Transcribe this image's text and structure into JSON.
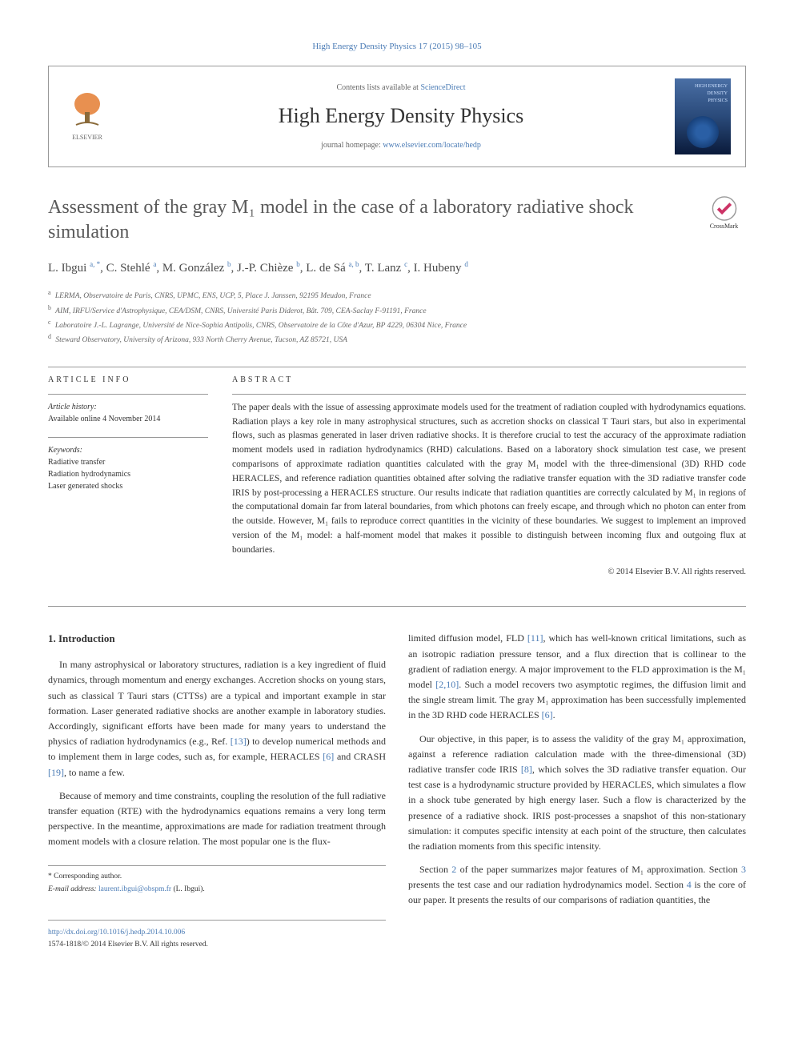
{
  "journal_ref": {
    "prefix": "High Energy Density Physics 17 (2015) 98–105",
    "link_text": "High Energy Density Physics 17 (2015) 98–105"
  },
  "header": {
    "contents_prefix": "Contents lists available at ",
    "contents_link": "ScienceDirect",
    "journal_name": "High Energy Density Physics",
    "homepage_prefix": "journal homepage: ",
    "homepage_link": "www.elsevier.com/locate/hedp",
    "publisher_name": "ELSEVIER",
    "cover_badge": "HIGH ENERGY DENSITY PHYSICS"
  },
  "crossmark_label": "CrossMark",
  "title": "Assessment of the gray M₁ model in the case of a laboratory radiative shock simulation",
  "authors_html": "L. Ibgui <sup class='sup-link'>a, *</sup>, C. Stehlé <sup class='sup-link'>a</sup>, M. González <sup class='sup-link'>b</sup>, J.-P. Chièze <sup class='sup-link'>b</sup>, L. de Sá <sup class='sup-link'>a, b</sup>, T. Lanz <sup class='sup-link'>c</sup>, I. Hubeny <sup class='sup-link'>d</sup>",
  "affiliations": [
    {
      "sup": "a",
      "text": "LERMA, Observatoire de Paris, CNRS, UPMC, ENS, UCP, 5, Place J. Janssen, 92195 Meudon, France"
    },
    {
      "sup": "b",
      "text": "AIM, IRFU/Service d'Astrophysique, CEA/DSM, CNRS, Université Paris Diderot, Bât. 709, CEA-Saclay F-91191, France"
    },
    {
      "sup": "c",
      "text": "Laboratoire J.-L. Lagrange, Université de Nice-Sophia Antipolis, CNRS, Observatoire de la Côte d'Azur, BP 4229, 06304 Nice, France"
    },
    {
      "sup": "d",
      "text": "Steward Observatory, University of Arizona, 933 North Cherry Avenue, Tucson, AZ 85721, USA"
    }
  ],
  "article_info": {
    "label": "ARTICLE INFO",
    "history_label": "Article history:",
    "history_text": "Available online 4 November 2014",
    "keywords_label": "Keywords:",
    "keywords": [
      "Radiative transfer",
      "Radiation hydrodynamics",
      "Laser generated shocks"
    ]
  },
  "abstract": {
    "label": "ABSTRACT",
    "text": "The paper deals with the issue of assessing approximate models used for the treatment of radiation coupled with hydrodynamics equations. Radiation plays a key role in many astrophysical structures, such as accretion shocks on classical T Tauri stars, but also in experimental flows, such as plasmas generated in laser driven radiative shocks. It is therefore crucial to test the accuracy of the approximate radiation moment models used in radiation hydrodynamics (RHD) calculations. Based on a laboratory shock simulation test case, we present comparisons of approximate radiation quantities calculated with the gray M₁ model with the three-dimensional (3D) RHD code HERACLES, and reference radiation quantities obtained after solving the radiative transfer equation with the 3D radiative transfer code IRIS by post-processing a HERACLES structure. Our results indicate that radiation quantities are correctly calculated by M₁ in regions of the computational domain far from lateral boundaries, from which photons can freely escape, and through which no photon can enter from the outside. However, M₁ fails to reproduce correct quantities in the vicinity of these boundaries. We suggest to implement an improved version of the M₁ model: a half-moment model that makes it possible to distinguish between incoming flux and outgoing flux at boundaries.",
    "copyright": "© 2014 Elsevier B.V. All rights reserved."
  },
  "body": {
    "section1_heading": "1. Introduction",
    "left_paras": [
      "In many astrophysical or laboratory structures, radiation is a key ingredient of fluid dynamics, through momentum and energy exchanges. Accretion shocks on young stars, such as classical T Tauri stars (CTTSs) are a typical and important example in star formation. Laser generated radiative shocks are another example in laboratory studies. Accordingly, significant efforts have been made for many years to understand the physics of radiation hydrodynamics (e.g., Ref. <span class='ref-link'>[13]</span>) to develop numerical methods and to implement them in large codes, such as, for example, HERACLES <span class='ref-link'>[6]</span> and CRASH <span class='ref-link'>[19]</span>, to name a few.",
      "Because of memory and time constraints, coupling the resolution of the full radiative transfer equation (RTE) with the hydrodynamics equations remains a very long term perspective. In the meantime, approximations are made for radiation treatment through moment models with a closure relation. The most popular one is the flux-"
    ],
    "right_paras": [
      "limited diffusion model, FLD <span class='ref-link'>[11]</span>, which has well-known critical limitations, such as an isotropic radiation pressure tensor, and a flux direction that is collinear to the gradient of radiation energy. A major improvement to the FLD approximation is the M₁ model <span class='ref-link'>[2,10]</span>. Such a model recovers two asymptotic regimes, the diffusion limit and the single stream limit. The gray M₁ approximation has been successfully implemented in the 3D RHD code HERACLES <span class='ref-link'>[6]</span>.",
      "Our objective, in this paper, is to assess the validity of the gray M₁ approximation, against a reference radiation calculation made with the three-dimensional (3D) radiative transfer code IRIS <span class='ref-link'>[8]</span>, which solves the 3D radiative transfer equation. Our test case is a hydrodynamic structure provided by HERACLES, which simulates a flow in a shock tube generated by high energy laser. Such a flow is characterized by the presence of a radiative shock. IRIS post-processes a snapshot of this non-stationary simulation: it computes specific intensity at each point of the structure, then calculates the radiation moments from this specific intensity.",
      "Section <span class='ref-link'>2</span> of the paper summarizes major features of M₁ approximation. Section <span class='ref-link'>3</span> presents the test case and our radiation hydrodynamics model. Section <span class='ref-link'>4</span> is the core of our paper. It presents the results of our comparisons of radiation quantities, the"
    ]
  },
  "corresponding": {
    "label": "* Corresponding author.",
    "email_label": "E-mail address: ",
    "email": "laurent.ibgui@obspm.fr",
    "name": " (L. Ibgui)."
  },
  "footer": {
    "doi": "http://dx.doi.org/10.1016/j.hedp.2014.10.006",
    "issn_line": "1574-1818/© 2014 Elsevier B.V. All rights reserved."
  },
  "colors": {
    "link": "#4a7bb5",
    "text": "#333333",
    "muted": "#666666",
    "border": "#999999",
    "heading": "#595959"
  }
}
